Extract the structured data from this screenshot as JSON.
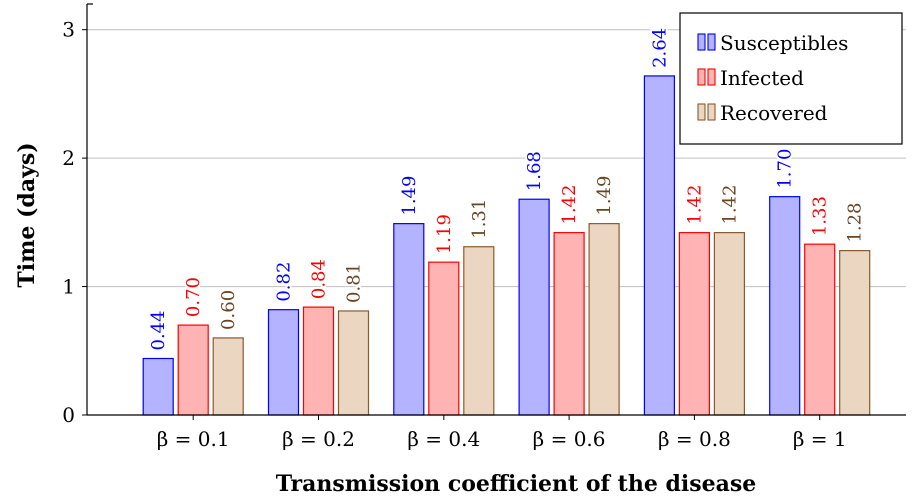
{
  "chart_data": {
    "type": "bar",
    "categories": [
      "β = 0.1",
      "β = 0.2",
      "β = 0.4",
      "β = 0.6",
      "β = 0.8",
      "β = 1"
    ],
    "series": [
      {
        "name": "Susceptibles",
        "values": [
          0.44,
          0.82,
          1.49,
          1.68,
          2.64,
          1.7
        ],
        "labels": [
          "0.44",
          "0.82",
          "1.49",
          "1.68",
          "2.64",
          "1.70"
        ],
        "fill": "#b3b3ff",
        "stroke": "#0000ff",
        "label_color": "#0000ff"
      },
      {
        "name": "Infected",
        "values": [
          0.7,
          0.84,
          1.19,
          1.42,
          1.42,
          1.33
        ],
        "labels": [
          "0.70",
          "0.84",
          "1.19",
          "1.42",
          "1.42",
          "1.33"
        ],
        "fill": "#ffb3b3",
        "stroke": "#ff0000",
        "label_color": "#ff0000"
      },
      {
        "name": "Recovered",
        "values": [
          0.6,
          0.81,
          1.31,
          1.49,
          1.42,
          1.28
        ],
        "labels": [
          "0.60",
          "0.81",
          "1.31",
          "1.49",
          "1.42",
          "1.28"
        ],
        "fill": "#ead6c1",
        "stroke": "#8b5a2b",
        "label_color": "#6b4420"
      }
    ],
    "xlabel": "Transmission coefficient of the disease",
    "ylabel": "Time (days)",
    "ylim": [
      0,
      3.2
    ],
    "yticks": [
      0,
      1,
      2,
      3
    ],
    "ytick_labels": [
      "0",
      "1",
      "2",
      "3"
    ],
    "grid": "horizontal",
    "legend_position": "top-right"
  }
}
